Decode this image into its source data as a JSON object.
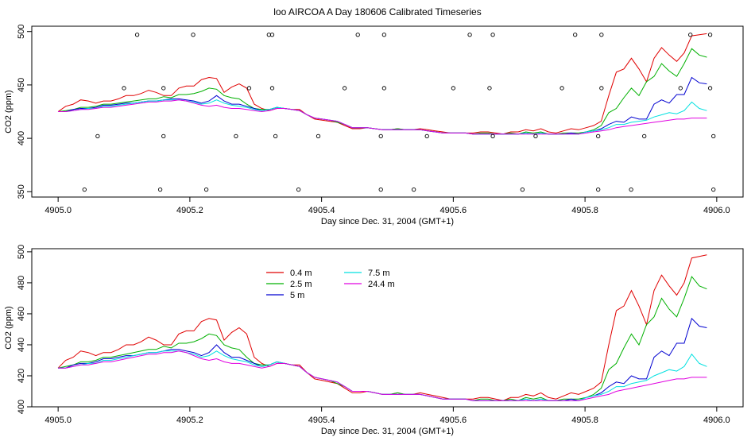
{
  "title": "loo AIRCOA A  Day 180606  Calibrated Timeseries",
  "colors": {
    "0.4 m": "#e00000",
    "2.5 m": "#00b000",
    "5 m": "#0000d0",
    "7.5 m": "#00e0e0",
    "24.4 m": "#e000e0"
  },
  "chart_data": [
    {
      "type": "scatter",
      "xlabel": "Day since Dec. 31, 2004 (GMT+1)",
      "ylabel": "CO2 (ppm)",
      "xlim": [
        4904.96,
        4906.04
      ],
      "ylim": [
        345,
        505
      ],
      "xticks": [
        "4905.0",
        "4905.2",
        "4905.4",
        "4905.6",
        "4905.8",
        "4906.0"
      ],
      "yticks": [
        "350",
        "400",
        "450",
        "500"
      ],
      "grid": false,
      "points": {
        "x": [
          4905.04,
          4905.06,
          4905.1,
          4905.12,
          4905.155,
          4905.16,
          4905.16,
          4905.205,
          4905.225,
          4905.27,
          4905.29,
          4905.32,
          4905.325,
          4905.325,
          4905.33,
          4905.365,
          4905.395,
          4905.435,
          4905.455,
          4905.49,
          4905.49,
          4905.495,
          4905.495,
          4905.54,
          4905.56,
          4905.6,
          4905.625,
          4905.655,
          4905.66,
          4905.66,
          4905.705,
          4905.725,
          4905.765,
          4905.785,
          4905.82,
          4905.82,
          4905.825,
          4905.825,
          4905.87,
          4905.89,
          4905.945,
          4905.96,
          4905.99,
          4905.99,
          4905.995,
          4905.995
        ],
        "y": [
          352,
          402,
          447,
          497,
          352,
          402,
          447,
          497,
          352,
          402,
          447,
          497,
          447,
          497,
          402,
          352,
          402,
          447,
          497,
          352,
          402,
          447,
          497,
          352,
          402,
          447,
          497,
          447,
          497,
          402,
          352,
          402,
          447,
          497,
          352,
          402,
          447,
          497,
          352,
          402,
          447,
          497,
          447,
          497,
          402,
          352
        ]
      },
      "series": [
        {
          "name": "0.4 m",
          "y": [
            425,
            430,
            432,
            436,
            435,
            433,
            435,
            435,
            437,
            440,
            440,
            442,
            445,
            443,
            440,
            440,
            447,
            449,
            449,
            455,
            457,
            456,
            443,
            448,
            451,
            447,
            432,
            428,
            426,
            428,
            428,
            427,
            427,
            422,
            418,
            417,
            416,
            415,
            412,
            409,
            409,
            410,
            409,
            408,
            408,
            409,
            408,
            408,
            409,
            408,
            407,
            406,
            405,
            405,
            405,
            405,
            406,
            406,
            405,
            404,
            406,
            406,
            408,
            407,
            409,
            406,
            405,
            407,
            409,
            408,
            410,
            412,
            416,
            440,
            462,
            465,
            475,
            465,
            453,
            475,
            485,
            478,
            472,
            480,
            496,
            497,
            498
          ]
        },
        {
          "name": "2.5 m",
          "y": [
            425,
            426,
            427,
            429,
            429,
            430,
            432,
            432,
            433,
            434,
            435,
            436,
            437,
            437,
            439,
            438,
            441,
            441,
            442,
            444,
            447,
            446,
            440,
            438,
            437,
            432,
            428,
            427,
            427,
            429,
            428,
            427,
            426,
            422,
            419,
            418,
            417,
            415,
            413,
            410,
            410,
            410,
            409,
            408,
            408,
            409,
            408,
            408,
            408,
            407,
            406,
            405,
            405,
            405,
            405,
            404,
            405,
            405,
            404,
            404,
            405,
            404,
            406,
            405,
            406,
            404,
            404,
            405,
            405,
            405,
            406,
            408,
            412,
            424,
            428,
            438,
            447,
            440,
            453,
            458,
            470,
            463,
            458,
            470,
            484,
            478,
            476
          ]
        },
        {
          "name": "5 m",
          "y": [
            425,
            425,
            427,
            428,
            428,
            429,
            431,
            431,
            432,
            433,
            433,
            434,
            435,
            435,
            436,
            437,
            437,
            436,
            435,
            433,
            435,
            440,
            435,
            432,
            432,
            430,
            428,
            426,
            427,
            429,
            428,
            427,
            426,
            422,
            419,
            418,
            417,
            416,
            413,
            410,
            410,
            410,
            409,
            408,
            408,
            408,
            408,
            408,
            408,
            407,
            406,
            405,
            405,
            405,
            405,
            404,
            404,
            404,
            404,
            404,
            404,
            404,
            405,
            404,
            405,
            404,
            404,
            404,
            405,
            404,
            406,
            407,
            409,
            413,
            416,
            415,
            420,
            418,
            418,
            432,
            436,
            433,
            441,
            441,
            457,
            452,
            451
          ]
        },
        {
          "name": "7.5 m",
          "y": [
            425,
            425,
            426,
            427,
            428,
            428,
            430,
            430,
            431,
            432,
            433,
            434,
            435,
            435,
            436,
            436,
            436,
            435,
            434,
            432,
            433,
            436,
            433,
            431,
            430,
            429,
            427,
            426,
            427,
            429,
            428,
            427,
            426,
            422,
            419,
            418,
            417,
            416,
            413,
            410,
            410,
            410,
            409,
            408,
            408,
            408,
            408,
            408,
            408,
            407,
            406,
            405,
            405,
            405,
            405,
            404,
            404,
            404,
            404,
            404,
            404,
            404,
            405,
            404,
            405,
            404,
            404,
            404,
            404,
            404,
            406,
            407,
            408,
            410,
            413,
            413,
            415,
            416,
            417,
            420,
            422,
            424,
            423,
            426,
            434,
            428,
            426
          ]
        },
        {
          "name": "24.4 m",
          "y": [
            425,
            425,
            426,
            427,
            427,
            428,
            429,
            429,
            430,
            431,
            432,
            433,
            434,
            434,
            435,
            435,
            436,
            435,
            433,
            431,
            430,
            431,
            429,
            428,
            428,
            427,
            426,
            425,
            426,
            428,
            428,
            427,
            426,
            422,
            419,
            418,
            417,
            416,
            413,
            410,
            410,
            410,
            409,
            408,
            408,
            408,
            408,
            408,
            408,
            407,
            406,
            405,
            405,
            405,
            405,
            404,
            404,
            404,
            404,
            404,
            404,
            404,
            404,
            404,
            404,
            404,
            404,
            404,
            404,
            404,
            405,
            406,
            407,
            408,
            410,
            411,
            412,
            413,
            414,
            415,
            416,
            417,
            418,
            418,
            419,
            419,
            419
          ]
        }
      ]
    },
    {
      "type": "line",
      "xlabel": "Day since Dec. 31, 2004 (GMT+1)",
      "ylabel": "CO2 (ppm)",
      "xlim": [
        4904.96,
        4906.04
      ],
      "ylim": [
        400,
        502
      ],
      "xticks": [
        "4905.0",
        "4905.2",
        "4905.4",
        "4905.6",
        "4905.8",
        "4906.0"
      ],
      "yticks": [
        "400",
        "420",
        "440",
        "460",
        "480",
        "500"
      ],
      "grid": false,
      "legend": {
        "placement": "top-left",
        "entries": [
          "0.4 m",
          "2.5 m",
          "5 m",
          "7.5 m",
          "24.4 m"
        ]
      },
      "same_series_as_panel": 1
    }
  ]
}
